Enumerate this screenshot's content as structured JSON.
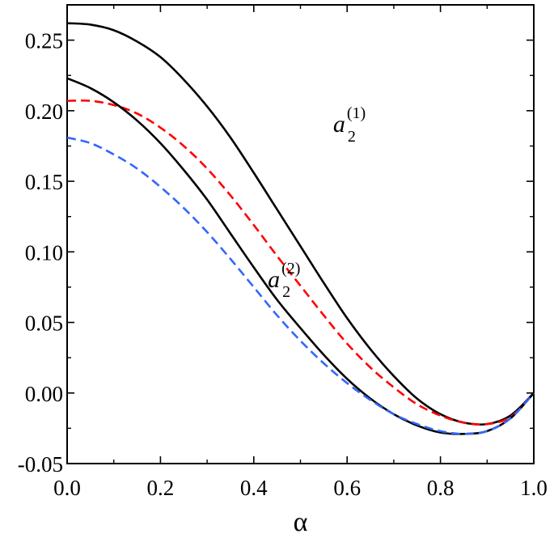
{
  "chart_data": {
    "type": "line",
    "title": "",
    "xlabel": "α",
    "ylabel": "",
    "xlim": [
      0.0,
      1.0
    ],
    "ylim": [
      -0.05,
      0.275
    ],
    "grid": false,
    "x": [
      0.0,
      0.05,
      0.1,
      0.15,
      0.2,
      0.25,
      0.3,
      0.35,
      0.4,
      0.45,
      0.5,
      0.55,
      0.6,
      0.65,
      0.7,
      0.75,
      0.8,
      0.85,
      0.9,
      0.95,
      1.0
    ],
    "xticks": [
      "0.0",
      "0.2",
      "0.4",
      "0.6",
      "0.8",
      "1.0"
    ],
    "yticks": [
      "-0.05",
      "0.00",
      "0.05",
      "0.10",
      "0.15",
      "0.20",
      "0.25"
    ],
    "series": [
      {
        "values": [
          0.262,
          0.261,
          0.257,
          0.249,
          0.238,
          0.222,
          0.203,
          0.181,
          0.156,
          0.13,
          0.104,
          0.078,
          0.053,
          0.031,
          0.012,
          -0.004,
          -0.015,
          -0.021,
          -0.022,
          -0.016,
          0.0
        ],
        "color": "#000000",
        "style": "solid"
      },
      {
        "values": [
          0.207,
          0.207,
          0.204,
          0.198,
          0.188,
          0.175,
          0.159,
          0.14,
          0.119,
          0.097,
          0.076,
          0.055,
          0.035,
          0.018,
          0.004,
          -0.008,
          -0.016,
          -0.021,
          -0.022,
          -0.017,
          0.0
        ],
        "color": "#ff0000",
        "style": "dashed"
      },
      {
        "values": [
          0.223,
          0.216,
          0.206,
          0.193,
          0.177,
          0.158,
          0.137,
          0.113,
          0.089,
          0.066,
          0.046,
          0.027,
          0.01,
          -0.004,
          -0.015,
          -0.023,
          -0.028,
          -0.029,
          -0.027,
          -0.018,
          0.0
        ],
        "color": "#000000",
        "style": "solid"
      },
      {
        "values": [
          0.181,
          0.177,
          0.169,
          0.159,
          0.146,
          0.131,
          0.114,
          0.095,
          0.075,
          0.055,
          0.037,
          0.021,
          0.007,
          -0.005,
          -0.015,
          -0.022,
          -0.027,
          -0.029,
          -0.027,
          -0.018,
          0.0
        ],
        "color": "#3366ff",
        "style": "dashed"
      }
    ],
    "annotations": [
      {
        "base": "a",
        "sub": "2",
        "sup": "(1)",
        "x": 0.57,
        "y": 0.185
      },
      {
        "base": "a",
        "sub": "2",
        "sup": "(2)",
        "x": 0.43,
        "y": 0.075
      }
    ]
  }
}
